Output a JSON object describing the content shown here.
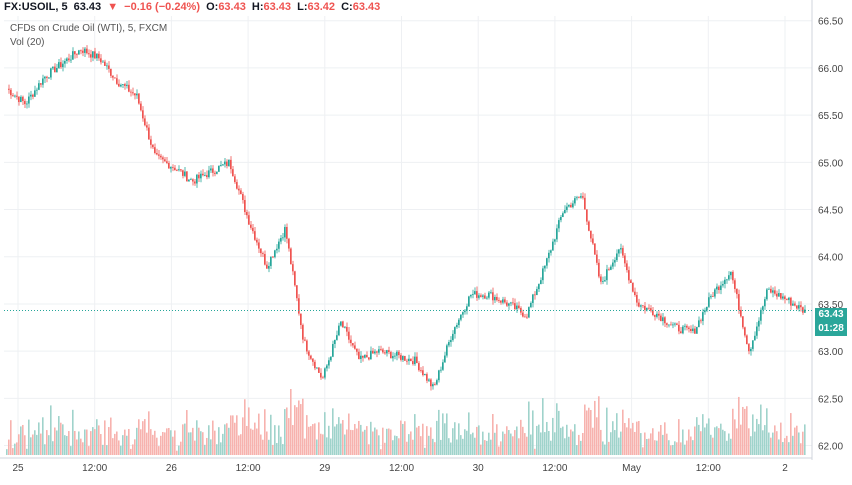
{
  "header": {
    "symbol": "FX:USOIL, 5",
    "last": "63.43",
    "change_arrow": "▼",
    "change": "−0.16 (−0.24%)",
    "open_label": "O:",
    "open": "63.43",
    "high_label": "H:",
    "high": "63.43",
    "low_label": "L:",
    "low": "63.42",
    "close_label": "C:",
    "close": "63.43"
  },
  "legend": {
    "title": "CFDs on Crude Oil (WTI), 5, FXCM",
    "volume": "Vol (20)"
  },
  "price_tag": {
    "price": "63.43",
    "countdown": "01:28"
  },
  "colors": {
    "up": "#26a69a",
    "down": "#ef5350",
    "up_vol": "#9fd3cb",
    "down_vol": "#f7b2ae",
    "grid": "#eef0f3"
  },
  "chart_data": {
    "type": "line",
    "y_axis": {
      "min": 61.9,
      "max": 66.55,
      "ticks": [
        "66.50",
        "66.00",
        "65.50",
        "65.00",
        "64.50",
        "64.00",
        "63.50",
        "63.00",
        "62.50",
        "62.00"
      ]
    },
    "x_ticks": [
      "25",
      "12:00",
      "26",
      "12:00",
      "29",
      "12:00",
      "30",
      "12:00",
      "May",
      "12:00",
      "2"
    ],
    "last_price": 63.43,
    "series": [
      {
        "values": [
          65.78,
          65.62,
          65.9,
          66.05,
          66.2,
          66.1,
          65.85,
          65.7,
          65.05,
          64.95,
          64.8,
          64.9,
          65.0,
          64.4,
          63.9,
          64.3,
          63.1,
          62.7,
          63.3,
          62.9,
          63.0,
          62.95,
          62.9,
          62.6,
          63.2,
          63.6,
          63.6,
          63.5,
          63.38,
          63.9,
          64.5,
          64.65,
          63.7,
          64.1,
          63.5,
          63.4,
          63.25,
          63.2,
          63.6,
          63.85,
          63.0,
          63.65,
          63.55,
          63.42
        ]
      }
    ]
  }
}
